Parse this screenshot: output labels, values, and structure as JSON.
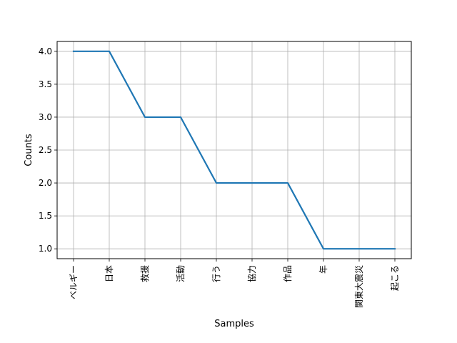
{
  "chart_data": {
    "type": "line",
    "categories": [
      "ベルギー",
      "日本",
      "救援",
      "活動",
      "行う",
      "協力",
      "作品",
      "年",
      "関東大震災",
      "起こる"
    ],
    "series": [
      {
        "values": [
          4,
          4,
          3,
          3,
          2,
          2,
          2,
          1,
          1,
          1
        ]
      }
    ],
    "xlabel": "Samples",
    "ylabel": "Counts",
    "ylim": [
      0.85,
      4.15
    ],
    "yticks": [
      1.0,
      1.5,
      2.0,
      2.5,
      3.0,
      3.5,
      4.0
    ],
    "grid": true,
    "line_color": "#1f77b4",
    "grid_color": "#b0b0b0"
  }
}
